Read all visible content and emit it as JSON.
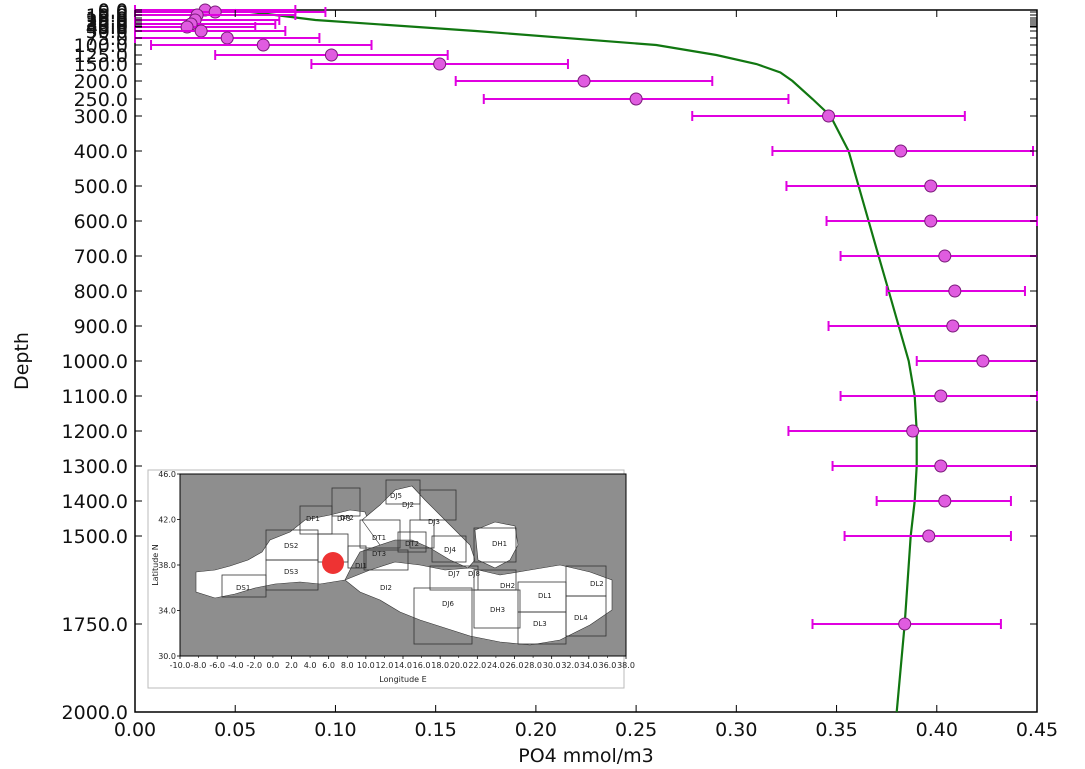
{
  "chart_data": {
    "type": "scatter",
    "xlabel": "PO4 mmol/m3",
    "ylabel": "Depth",
    "xlim": [
      0.0,
      0.45
    ],
    "x_ticks": [
      "0.00",
      "0.05",
      "0.10",
      "0.15",
      "0.20",
      "0.25",
      "0.30",
      "0.35",
      "0.40",
      "0.45"
    ],
    "y_ticks": [
      {
        "depth": 10,
        "label": "10.0"
      },
      {
        "depth": 20,
        "label": "20.0"
      },
      {
        "depth": 30,
        "label": "30.0"
      },
      {
        "depth": 50,
        "label": "50.0"
      },
      {
        "depth": 75,
        "label": "75.0"
      },
      {
        "depth": 100,
        "label": "100.0"
      },
      {
        "depth": 125,
        "label": "125.0"
      },
      {
        "depth": 150,
        "label": "150.0"
      },
      {
        "depth": 200,
        "label": "200.0"
      },
      {
        "depth": 250,
        "label": "250.0"
      },
      {
        "depth": 300,
        "label": "300.0"
      },
      {
        "depth": 400,
        "label": "400.0"
      },
      {
        "depth": 500,
        "label": "500.0"
      },
      {
        "depth": 600,
        "label": "600.0"
      },
      {
        "depth": 700,
        "label": "700.0"
      },
      {
        "depth": 800,
        "label": "800.0"
      },
      {
        "depth": 900,
        "label": "900.0"
      },
      {
        "depth": 1000,
        "label": "1000.0"
      },
      {
        "depth": 1100,
        "label": "1100.0"
      },
      {
        "depth": 1200,
        "label": "1200.0"
      },
      {
        "depth": 1300,
        "label": "1300.0"
      },
      {
        "depth": 1400,
        "label": "1400.0"
      },
      {
        "depth": 1500,
        "label": "1500.0"
      },
      {
        "depth": 1750,
        "label": "1750.0"
      },
      {
        "depth": 2000,
        "label": "2000.0"
      }
    ],
    "y_ticks_crowded": [
      {
        "depth": 0,
        "label": "0.0"
      },
      {
        "depth": 5,
        "label": "5.0"
      },
      {
        "depth": 15,
        "label": "15.0"
      },
      {
        "depth": 25,
        "label": "25.0"
      },
      {
        "depth": 35,
        "label": "35.0"
      },
      {
        "depth": 40,
        "label": "40.0"
      }
    ],
    "measurements": [
      {
        "depth": 0,
        "x": 0.035,
        "err_low": 0.0,
        "err_high": 0.08
      },
      {
        "depth": 5,
        "x": 0.04,
        "err_low": 0.0,
        "err_high": 0.095
      },
      {
        "depth": 10,
        "x": 0.031,
        "err_low": 0.0,
        "err_high": 0.08
      },
      {
        "depth": 20,
        "x": 0.03,
        "err_low": 0.0,
        "err_high": 0.072
      },
      {
        "depth": 30,
        "x": 0.028,
        "err_low": 0.0,
        "err_high": 0.07
      },
      {
        "depth": 40,
        "x": 0.026,
        "err_low": 0.0,
        "err_high": 0.06
      },
      {
        "depth": 50,
        "x": 0.033,
        "err_low": 0.0,
        "err_high": 0.075
      },
      {
        "depth": 75,
        "x": 0.046,
        "err_low": 0.0,
        "err_high": 0.092
      },
      {
        "depth": 100,
        "x": 0.064,
        "err_low": 0.008,
        "err_high": 0.118
      },
      {
        "depth": 125,
        "x": 0.098,
        "err_low": 0.04,
        "err_high": 0.156
      },
      {
        "depth": 150,
        "x": 0.152,
        "err_low": 0.088,
        "err_high": 0.216
      },
      {
        "depth": 200,
        "x": 0.224,
        "err_low": 0.16,
        "err_high": 0.288
      },
      {
        "depth": 250,
        "x": 0.25,
        "err_low": 0.174,
        "err_high": 0.326
      },
      {
        "depth": 300,
        "x": 0.346,
        "err_low": 0.278,
        "err_high": 0.414
      },
      {
        "depth": 400,
        "x": 0.382,
        "err_low": 0.318,
        "err_high": 0.448
      },
      {
        "depth": 500,
        "x": 0.397,
        "err_low": 0.325,
        "err_high": 0.47
      },
      {
        "depth": 600,
        "x": 0.397,
        "err_low": 0.345,
        "err_high": 0.45
      },
      {
        "depth": 700,
        "x": 0.404,
        "err_low": 0.352,
        "err_high": 0.456
      },
      {
        "depth": 800,
        "x": 0.409,
        "err_low": 0.375,
        "err_high": 0.444
      },
      {
        "depth": 900,
        "x": 0.408,
        "err_low": 0.346,
        "err_high": 0.47
      },
      {
        "depth": 1000,
        "x": 0.423,
        "err_low": 0.39,
        "err_high": 0.455
      },
      {
        "depth": 1100,
        "x": 0.402,
        "err_low": 0.352,
        "err_high": 0.45
      },
      {
        "depth": 1200,
        "x": 0.388,
        "err_low": 0.326,
        "err_high": 0.451
      },
      {
        "depth": 1300,
        "x": 0.402,
        "err_low": 0.348,
        "err_high": 0.454
      },
      {
        "depth": 1400,
        "x": 0.404,
        "err_low": 0.37,
        "err_high": 0.437
      },
      {
        "depth": 1500,
        "x": 0.396,
        "err_low": 0.354,
        "err_high": 0.437
      },
      {
        "depth": 1750,
        "x": 0.384,
        "err_low": 0.338,
        "err_high": 0.432
      }
    ],
    "profile_line": [
      {
        "depth": 0,
        "x": 0.05
      },
      {
        "depth": 20,
        "x": 0.09
      },
      {
        "depth": 50,
        "x": 0.17
      },
      {
        "depth": 100,
        "x": 0.26
      },
      {
        "depth": 125,
        "x": 0.29
      },
      {
        "depth": 150,
        "x": 0.31
      },
      {
        "depth": 175,
        "x": 0.322
      },
      {
        "depth": 200,
        "x": 0.328
      },
      {
        "depth": 250,
        "x": 0.338
      },
      {
        "depth": 300,
        "x": 0.347
      },
      {
        "depth": 400,
        "x": 0.356
      },
      {
        "depth": 500,
        "x": 0.361
      },
      {
        "depth": 600,
        "x": 0.366
      },
      {
        "depth": 700,
        "x": 0.371
      },
      {
        "depth": 800,
        "x": 0.376
      },
      {
        "depth": 900,
        "x": 0.381
      },
      {
        "depth": 1000,
        "x": 0.386
      },
      {
        "depth": 1100,
        "x": 0.389
      },
      {
        "depth": 1200,
        "x": 0.39
      },
      {
        "depth": 1300,
        "x": 0.39
      },
      {
        "depth": 1400,
        "x": 0.389
      },
      {
        "depth": 1500,
        "x": 0.387
      },
      {
        "depth": 1750,
        "x": 0.384
      },
      {
        "depth": 2000,
        "x": 0.38
      }
    ],
    "colors": {
      "points": "#e05ce0",
      "errorbars": "#e000e0",
      "line": "#117711"
    },
    "grid": false
  },
  "inset_map": {
    "xlabel": "Longitude E",
    "ylabel": "Latitude N",
    "lon_ticks": [
      "-10.0",
      "-6.0",
      "-2.0",
      "2.0",
      "6.0",
      "10.0",
      "14.0",
      "18.0",
      "22.0",
      "26.0",
      "30.0",
      "34.0",
      "38.0"
    ],
    "lon_ticks_extra": [
      "-8.0",
      "-4.0",
      "0.0",
      "4.0",
      "8.0",
      "12.0",
      "16.0",
      "20.0",
      "24.0",
      "28.0",
      "32.0",
      "36.0"
    ],
    "lat_ticks": [
      "30.0",
      "34.0",
      "38.0",
      "42.0",
      "46.0"
    ],
    "region_labels": [
      "DS1",
      "DS2",
      "DS3",
      "DF1",
      "DF2",
      "DF3",
      "DI1",
      "DT1",
      "DT2",
      "DT3",
      "DJ2",
      "DJ3",
      "DJ4",
      "DJ5",
      "DJ6",
      "DJ7",
      "DJ8",
      "DH1",
      "DH2",
      "DH3",
      "DL1",
      "DL2",
      "DL3",
      "DL4",
      "DI2"
    ],
    "station_color": "#ee3333"
  }
}
